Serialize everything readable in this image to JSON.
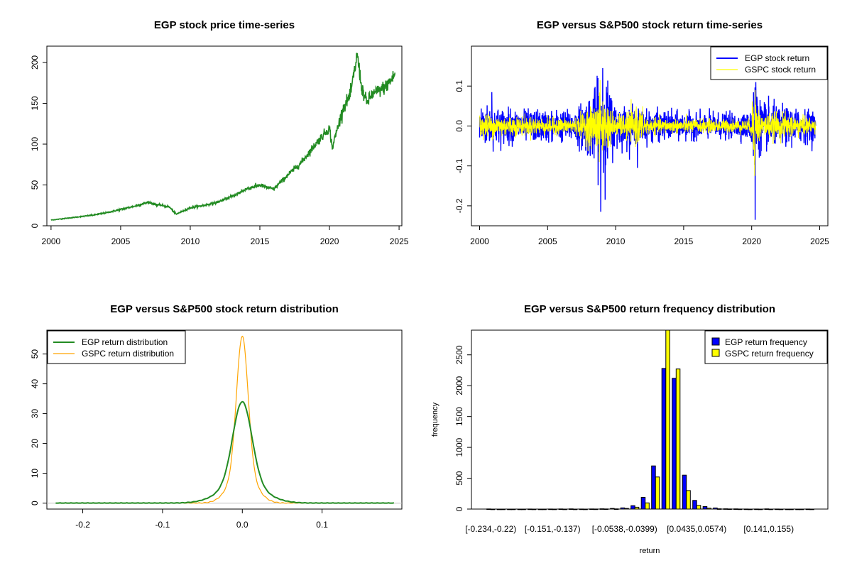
{
  "chart_data": [
    {
      "id": "price",
      "type": "line",
      "title": "EGP stock price time-series",
      "xlabel": "",
      "ylabel": "",
      "xlim": [
        1999.7,
        2025.2
      ],
      "ylim": [
        0,
        220
      ],
      "xticks": [
        "2000",
        "2005",
        "2010",
        "2015",
        "2020",
        "2025"
      ],
      "yticks": [
        "0",
        "50",
        "100",
        "150",
        "200"
      ],
      "series": [
        {
          "color": "#228B22",
          "x": [
            2000.0,
            2001.0,
            2002.0,
            2003.0,
            2004.0,
            2005.0,
            2006.0,
            2007.0,
            2007.5,
            2008.0,
            2008.5,
            2009.0,
            2009.2,
            2010.0,
            2011.0,
            2012.0,
            2013.0,
            2013.5,
            2014.0,
            2015.0,
            2015.5,
            2016.0,
            2017.0,
            2018.0,
            2019.0,
            2020.0,
            2020.2,
            2020.5,
            2021.0,
            2021.5,
            2022.0,
            2022.3,
            2022.7,
            2023.0,
            2023.5,
            2024.0,
            2024.5,
            2024.7
          ],
          "y": [
            7,
            9,
            11,
            13,
            16,
            20,
            24,
            29,
            26,
            25,
            23,
            14,
            16,
            22,
            25,
            29,
            36,
            40,
            45,
            50,
            47,
            45,
            62,
            78,
            100,
            120,
            95,
            115,
            145,
            160,
            210,
            170,
            150,
            160,
            165,
            170,
            180,
            185
          ]
        }
      ]
    },
    {
      "id": "returns",
      "type": "line",
      "title": "EGP versus S&P500 stock return time-series",
      "xlabel": "",
      "ylabel": "",
      "xlim": [
        1999.4,
        2025.6
      ],
      "ylim": [
        -0.25,
        0.2
      ],
      "xticks": [
        "2000",
        "2005",
        "2010",
        "2015",
        "2020",
        "2025"
      ],
      "yticks": [
        "-0.2",
        "-0.1",
        "0.0",
        "0.1"
      ],
      "legend_position": "top-right",
      "series": [
        {
          "name": "EGP stock return",
          "color": "#0000FF",
          "volatility": [
            [
              2000,
              0.035
            ],
            [
              2001,
              0.03
            ],
            [
              2003,
              0.025
            ],
            [
              2007,
              0.025
            ],
            [
              2008.5,
              0.06
            ],
            [
              2009.2,
              0.08
            ],
            [
              2010,
              0.035
            ],
            [
              2012,
              0.025
            ],
            [
              2016,
              0.02
            ],
            [
              2019.9,
              0.02
            ],
            [
              2020.2,
              0.09
            ],
            [
              2020.6,
              0.04
            ],
            [
              2022,
              0.03
            ],
            [
              2024.7,
              0.025
            ]
          ],
          "spikes": [
            [
              2008.9,
              -0.215
            ],
            [
              2009.05,
              0.145
            ],
            [
              2008.7,
              0.12
            ],
            [
              2020.25,
              -0.235
            ],
            [
              2020.3,
              0.11
            ],
            [
              2011.6,
              -0.105
            ],
            [
              2000.9,
              0.085
            ]
          ]
        },
        {
          "name": "GSPC stock return",
          "color": "#FFFF00",
          "volatility": [
            [
              2000,
              0.02
            ],
            [
              2003,
              0.015
            ],
            [
              2007,
              0.012
            ],
            [
              2008.7,
              0.04
            ],
            [
              2009.2,
              0.045
            ],
            [
              2010,
              0.015
            ],
            [
              2011.7,
              0.03
            ],
            [
              2012.5,
              0.012
            ],
            [
              2019.9,
              0.01
            ],
            [
              2020.2,
              0.07
            ],
            [
              2020.6,
              0.02
            ],
            [
              2022.5,
              0.02
            ],
            [
              2024.7,
              0.012
            ]
          ],
          "spikes": [
            [
              2008.85,
              0.115
            ],
            [
              2008.8,
              -0.09
            ],
            [
              2020.22,
              -0.125
            ],
            [
              2020.26,
              0.09
            ]
          ]
        }
      ]
    },
    {
      "id": "density",
      "type": "line",
      "title": "EGP versus S&P500 stock return distribution",
      "xlabel": "",
      "ylabel": "",
      "xlim": [
        -0.245,
        0.2
      ],
      "ylim": [
        -2,
        58
      ],
      "xticks": [
        "-0.2",
        "-0.1",
        "0.0",
        "0.1"
      ],
      "yticks": [
        "0",
        "10",
        "20",
        "30",
        "40",
        "50"
      ],
      "legend_position": "top-left",
      "series": [
        {
          "name": "EGP return distribution",
          "color": "#228B22",
          "peak": 34,
          "sd": 0.0118,
          "range": [
            -0.234,
            0.19
          ]
        },
        {
          "name": "GSPC return distribution",
          "color": "#FFA500",
          "peak": 56,
          "sd": 0.0071,
          "range": [
            -0.09,
            0.12
          ]
        }
      ]
    },
    {
      "id": "frequency",
      "type": "bar",
      "title": "EGP versus S&P500 return frequency distribution",
      "xlabel": "return",
      "ylabel": "frequency",
      "ylim": [
        0,
        2900
      ],
      "yticks": [
        "0",
        "500",
        "1000",
        "1500",
        "2000",
        "2500"
      ],
      "legend_position": "top-right",
      "category_labels": [
        "[-0.234,-0.22)",
        "[-0.151,-0.137)",
        "[-0.0538,-0.0399)",
        "[0.0435,0.0574)",
        "[0.141,0.155)"
      ],
      "label_bin_index": [
        0,
        6,
        13,
        20,
        27
      ],
      "series": [
        {
          "name": "EGP return frequency",
          "color": "#0000FF",
          "values": [
            2,
            0,
            0,
            0,
            1,
            0,
            1,
            2,
            3,
            1,
            2,
            5,
            10,
            20,
            55,
            190,
            700,
            2280,
            2120,
            550,
            140,
            40,
            18,
            5,
            3,
            1,
            1,
            3,
            1,
            0,
            0,
            1
          ]
        },
        {
          "name": "GSPC return frequency",
          "color": "#FFFF00",
          "values": [
            0,
            0,
            0,
            0,
            0,
            0,
            0,
            0,
            0,
            0,
            1,
            2,
            4,
            10,
            30,
            100,
            520,
            2900,
            2270,
            300,
            60,
            15,
            5,
            2,
            1,
            0,
            0,
            0,
            0,
            0,
            0,
            0
          ]
        }
      ]
    }
  ]
}
